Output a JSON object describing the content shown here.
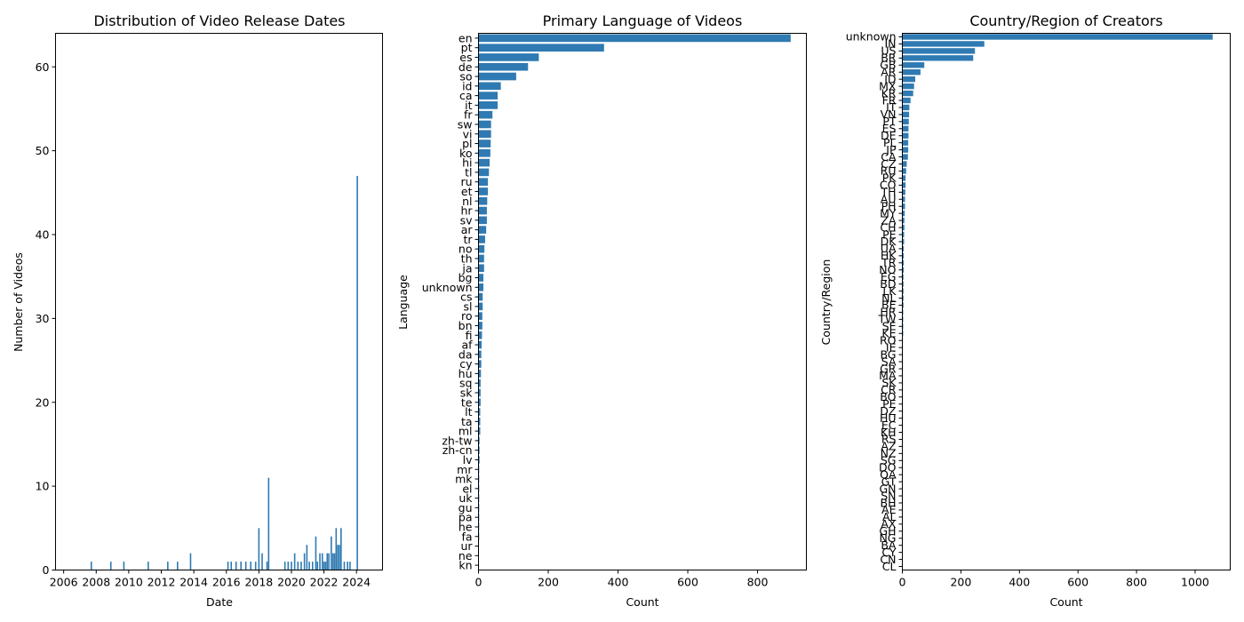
{
  "chart_data": [
    {
      "type": "bar",
      "orientation": "vertical",
      "title": "Distribution of Video Release Dates",
      "xlabel": "Date",
      "ylabel": "Number of Videos",
      "xlim": [
        2005.5,
        2025.6
      ],
      "ylim": [
        0,
        64
      ],
      "xticks": [
        2006,
        2008,
        2010,
        2012,
        2014,
        2016,
        2018,
        2020,
        2022,
        2024
      ],
      "xtick_labels": [
        "2006",
        "2008",
        "2010",
        "2012",
        "2014",
        "2016",
        "2018",
        "2020",
        "2022",
        "2024"
      ],
      "yticks": [
        0,
        10,
        20,
        30,
        40,
        50,
        60
      ],
      "ytick_labels": [
        "0",
        "10",
        "20",
        "30",
        "40",
        "50",
        "60"
      ],
      "bar_color": "#2f7ab2",
      "points": [
        {
          "x": 2007.7,
          "y": 1
        },
        {
          "x": 2008.9,
          "y": 1
        },
        {
          "x": 2009.7,
          "y": 1
        },
        {
          "x": 2011.2,
          "y": 1
        },
        {
          "x": 2012.4,
          "y": 1
        },
        {
          "x": 2013.0,
          "y": 1
        },
        {
          "x": 2013.8,
          "y": 2
        },
        {
          "x": 2016.1,
          "y": 1
        },
        {
          "x": 2016.3,
          "y": 1
        },
        {
          "x": 2016.6,
          "y": 1
        },
        {
          "x": 2016.9,
          "y": 1
        },
        {
          "x": 2017.2,
          "y": 1
        },
        {
          "x": 2017.5,
          "y": 1
        },
        {
          "x": 2017.8,
          "y": 1
        },
        {
          "x": 2018.0,
          "y": 5
        },
        {
          "x": 2018.2,
          "y": 2
        },
        {
          "x": 2018.5,
          "y": 1
        },
        {
          "x": 2018.6,
          "y": 11
        },
        {
          "x": 2019.6,
          "y": 1
        },
        {
          "x": 2019.8,
          "y": 1
        },
        {
          "x": 2020.0,
          "y": 1
        },
        {
          "x": 2020.2,
          "y": 2
        },
        {
          "x": 2020.4,
          "y": 1
        },
        {
          "x": 2020.6,
          "y": 1
        },
        {
          "x": 2020.8,
          "y": 2
        },
        {
          "x": 2020.95,
          "y": 3
        },
        {
          "x": 2021.1,
          "y": 1
        },
        {
          "x": 2021.3,
          "y": 1
        },
        {
          "x": 2021.5,
          "y": 4
        },
        {
          "x": 2021.6,
          "y": 1
        },
        {
          "x": 2021.75,
          "y": 2
        },
        {
          "x": 2021.9,
          "y": 2
        },
        {
          "x": 2022.0,
          "y": 1
        },
        {
          "x": 2022.1,
          "y": 1
        },
        {
          "x": 2022.2,
          "y": 2
        },
        {
          "x": 2022.3,
          "y": 2
        },
        {
          "x": 2022.45,
          "y": 4
        },
        {
          "x": 2022.55,
          "y": 2
        },
        {
          "x": 2022.65,
          "y": 2
        },
        {
          "x": 2022.75,
          "y": 5
        },
        {
          "x": 2022.85,
          "y": 3
        },
        {
          "x": 2022.95,
          "y": 3
        },
        {
          "x": 2023.05,
          "y": 5
        },
        {
          "x": 2023.25,
          "y": 1
        },
        {
          "x": 2023.45,
          "y": 1
        },
        {
          "x": 2023.6,
          "y": 1
        },
        {
          "x": 2024.05,
          "y": 47
        }
      ]
    },
    {
      "type": "bar",
      "orientation": "horizontal",
      "title": "Primary Language of Videos",
      "xlabel": "Count",
      "ylabel": "Language",
      "xlim": [
        0,
        940
      ],
      "xticks": [
        0,
        200,
        400,
        600,
        800
      ],
      "xtick_labels": [
        "0",
        "200",
        "400",
        "600",
        "800"
      ],
      "bar_color": "#2f7ab2",
      "categories": [
        "en",
        "pt",
        "es",
        "de",
        "so",
        "id",
        "ca",
        "it",
        "fr",
        "sw",
        "vi",
        "pl",
        "ko",
        "hi",
        "tl",
        "ru",
        "et",
        "nl",
        "hr",
        "sv",
        "ar",
        "tr",
        "no",
        "th",
        "ja",
        "bg",
        "unknown",
        "cs",
        "sl",
        "ro",
        "bn",
        "fi",
        "af",
        "da",
        "cy",
        "hu",
        "sq",
        "sk",
        "te",
        "lt",
        "ta",
        "ml",
        "zh-tw",
        "zh-cn",
        "lv",
        "mr",
        "mk",
        "el",
        "uk",
        "gu",
        "pa",
        "he",
        "fa",
        "ur",
        "ne",
        "kn"
      ],
      "values": [
        895,
        360,
        173,
        142,
        108,
        64,
        55,
        55,
        40,
        36,
        36,
        35,
        34,
        32,
        30,
        27,
        27,
        25,
        24,
        24,
        22,
        19,
        17,
        16,
        16,
        14,
        14,
        12,
        12,
        11,
        11,
        10,
        9,
        8,
        8,
        7,
        6,
        6,
        6,
        5,
        5,
        5,
        3,
        3,
        3,
        2,
        2,
        2,
        2,
        2,
        2,
        2,
        2,
        1,
        1,
        1
      ]
    },
    {
      "type": "bar",
      "orientation": "horizontal",
      "title": "Country/Region of Creators",
      "xlabel": "Count",
      "ylabel": "Country/Region",
      "xlim": [
        0,
        1120
      ],
      "xticks": [
        0,
        200,
        400,
        600,
        800,
        1000
      ],
      "xtick_labels": [
        "0",
        "200",
        "400",
        "600",
        "800",
        "1000"
      ],
      "bar_color": "#2f7ab2",
      "categories": [
        "unknown",
        "IN",
        "US",
        "BR",
        "GB",
        "AR",
        "ID",
        "MX",
        "KR",
        "FR",
        "IT",
        "VN",
        "PT",
        "ES",
        "DE",
        "PL",
        "JP",
        "CA",
        "CZ",
        "RU",
        "PK",
        "CO",
        "TH",
        "AU",
        "PH",
        "MY",
        "ZA",
        "CH",
        "PE",
        "DK",
        "UA",
        "HK",
        "TR",
        "NO",
        "EG",
        "BD",
        "LK",
        "NL",
        "BE",
        "HR",
        "TW",
        "SE",
        "KE",
        "RO",
        "IE",
        "BG",
        "SA",
        "GR",
        "MA",
        "SK",
        "CR",
        "BO",
        "PE",
        "DZ",
        "HU",
        "EC",
        "KH",
        "RS",
        "AZ",
        "NZ",
        "SG",
        "DO",
        "QA",
        "GT",
        "GN",
        "SN",
        "BH",
        "AE",
        "AL",
        "AX",
        "GH",
        "NG",
        "BA",
        "CY",
        "CN",
        "CL"
      ],
      "values": [
        1060,
        280,
        248,
        242,
        75,
        62,
        44,
        40,
        37,
        28,
        24,
        23,
        22,
        21,
        21,
        20,
        20,
        19,
        15,
        13,
        11,
        11,
        10,
        9,
        9,
        8,
        7,
        7,
        6,
        6,
        5,
        5,
        5,
        5,
        4,
        4,
        4,
        4,
        4,
        3,
        3,
        3,
        3,
        2,
        2,
        2,
        2,
        2,
        2,
        2,
        2,
        2,
        2,
        2,
        2,
        2,
        2,
        1,
        1,
        1,
        1,
        1,
        1,
        1,
        1,
        1,
        1,
        1,
        1,
        1,
        1,
        1,
        1,
        1,
        1,
        1
      ]
    }
  ]
}
